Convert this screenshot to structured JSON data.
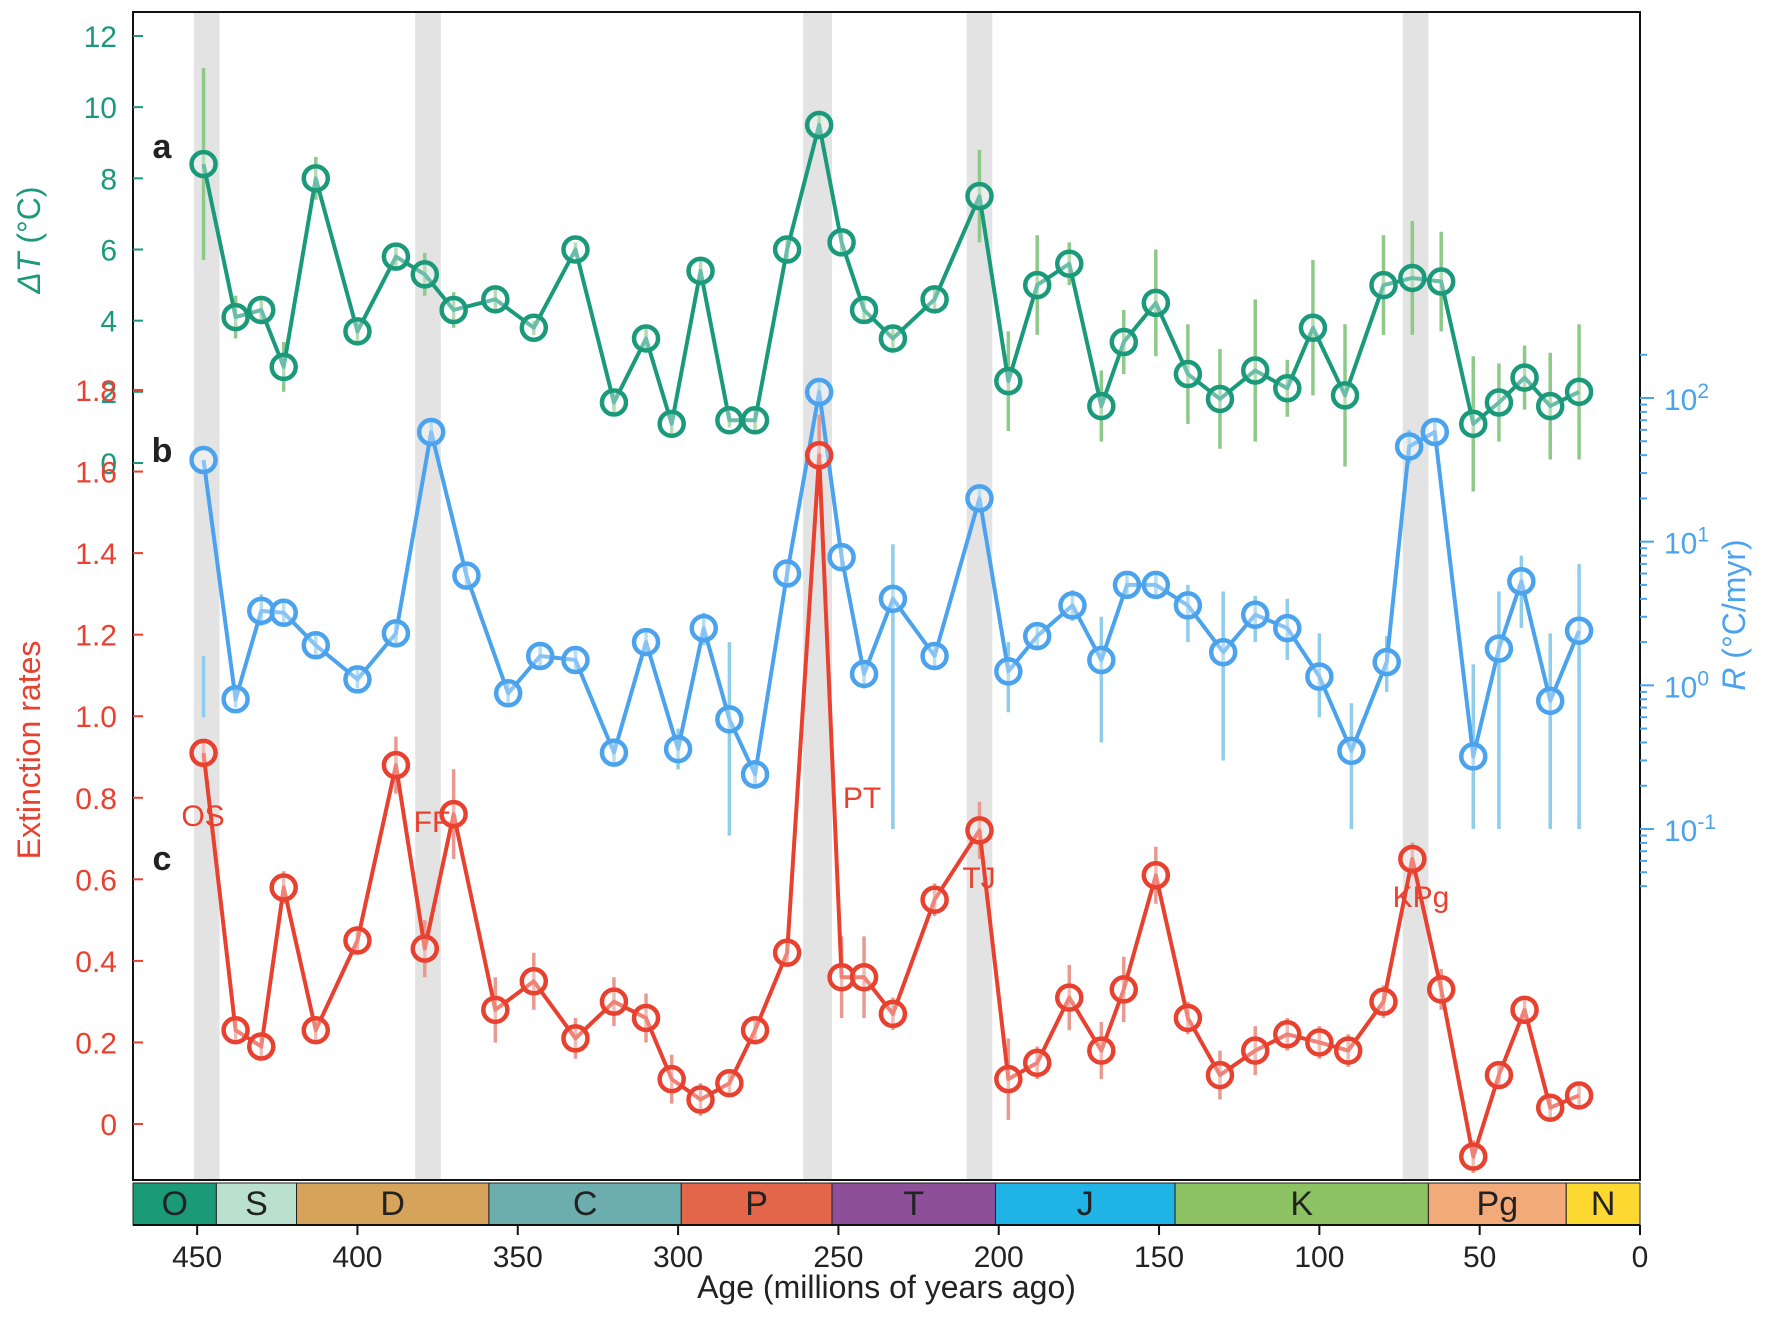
{
  "chart_data": {
    "type": "line",
    "x_axis": {
      "label": "Age (millions of years ago)",
      "range": [
        470,
        0
      ],
      "reversed": true,
      "ticks": [
        450,
        400,
        350,
        300,
        250,
        200,
        150,
        100,
        50,
        0
      ]
    },
    "extinction_events": [
      {
        "label": "OS",
        "start": 451,
        "end": 443
      },
      {
        "label": "FF",
        "start": 382,
        "end": 374
      },
      {
        "label": "PT",
        "start": 261,
        "end": 252
      },
      {
        "label": "TJ",
        "start": 210,
        "end": 202
      },
      {
        "label": "KPg",
        "start": 74,
        "end": 66
      }
    ],
    "periods": [
      {
        "label": "O",
        "start": 470,
        "end": 444,
        "color": "#1a9a77"
      },
      {
        "label": "S",
        "start": 444,
        "end": 419,
        "color": "#b9e1cd"
      },
      {
        "label": "D",
        "start": 419,
        "end": 359,
        "color": "#d6a35a"
      },
      {
        "label": "C",
        "start": 359,
        "end": 299,
        "color": "#6cadad"
      },
      {
        "label": "P",
        "start": 299,
        "end": 252,
        "color": "#e3654a"
      },
      {
        "label": "T",
        "start": 252,
        "end": 201,
        "color": "#8c4f98"
      },
      {
        "label": "J",
        "start": 201,
        "end": 145,
        "color": "#1fb3e6"
      },
      {
        "label": "K",
        "start": 145,
        "end": 66,
        "color": "#8cc262"
      },
      {
        "label": "Pg",
        "start": 66,
        "end": 23,
        "color": "#f2aa78"
      },
      {
        "label": "N",
        "start": 23,
        "end": 0,
        "color": "#fcd830"
      }
    ],
    "panels": [
      {
        "id": "a",
        "panel_label": "a",
        "ylabel_symbol": "ΔT",
        "ylabel_unit": " (°C)",
        "axis_side": "left",
        "scale": "linear",
        "ylim": [
          0,
          12
        ],
        "ticks": [
          "0",
          "2",
          "4",
          "6",
          "8",
          "10",
          "12"
        ],
        "color": "#1b9a7b",
        "err_color": "#8fc98a",
        "x": [
          448,
          438,
          430,
          423,
          413,
          400,
          388,
          379,
          370,
          357,
          345,
          332,
          320,
          310,
          302,
          293,
          284,
          276,
          266,
          256,
          249,
          242,
          233,
          220,
          206,
          197,
          188,
          178,
          168,
          161,
          151,
          141,
          131,
          120,
          110,
          102,
          92,
          80,
          71,
          62,
          52,
          44,
          36,
          28,
          19
        ],
        "values": [
          8.4,
          4.1,
          4.3,
          2.7,
          8.0,
          3.7,
          5.8,
          5.3,
          4.3,
          4.6,
          3.8,
          6.0,
          1.7,
          3.5,
          1.1,
          5.4,
          1.2,
          1.2,
          6.0,
          9.5,
          6.2,
          4.3,
          3.5,
          4.6,
          7.5,
          2.3,
          5.0,
          5.6,
          1.6,
          3.4,
          4.5,
          2.5,
          1.8,
          2.6,
          2.1,
          3.8,
          1.9,
          5.0,
          5.2,
          5.1,
          1.1,
          1.7,
          2.4,
          1.6,
          2.0
        ],
        "err": [
          2.7,
          0.6,
          0.4,
          0.7,
          0.6,
          0.3,
          0.3,
          0.6,
          0.5,
          0.3,
          0.2,
          0.2,
          0.3,
          0.3,
          0.3,
          0.4,
          0.2,
          0.3,
          0.3,
          0.4,
          0.3,
          0.3,
          0.3,
          0.4,
          1.3,
          1.4,
          1.4,
          0.6,
          1.0,
          0.9,
          1.5,
          1.4,
          1.4,
          2.0,
          0.8,
          1.9,
          2.0,
          1.4,
          1.6,
          1.4,
          1.9,
          1.1,
          0.9,
          1.5,
          1.9
        ]
      },
      {
        "id": "b",
        "panel_label": "b",
        "ylabel_symbol": "R",
        "ylabel_unit": " (°C/myr)",
        "axis_side": "right",
        "scale": "log",
        "ylim": [
          0.0302,
          302
        ],
        "ticks": [
          {
            "value": 0.1,
            "base": "10",
            "exp": "-1"
          },
          {
            "value": 1,
            "base": "10",
            "exp": "0"
          },
          {
            "value": 10,
            "base": "10",
            "exp": "1"
          },
          {
            "value": 100,
            "base": "10",
            "exp": "2"
          }
        ],
        "color": "#4ba3ee",
        "err_color": "#8fcdea",
        "x": [
          448,
          438,
          430,
          423,
          413,
          400,
          388,
          377,
          366,
          353,
          343,
          332,
          320,
          310,
          300,
          292,
          284,
          276,
          266,
          256,
          249,
          242,
          233,
          220,
          206,
          197,
          188,
          177,
          168,
          160,
          151,
          141,
          130,
          120,
          110,
          100,
          90,
          79,
          72,
          64,
          52,
          44,
          37,
          28,
          19
        ],
        "values": [
          37,
          0.8,
          3.3,
          3.2,
          1.9,
          1.1,
          2.3,
          58,
          5.8,
          0.88,
          1.6,
          1.5,
          0.34,
          2.0,
          0.36,
          2.5,
          0.58,
          0.24,
          6.0,
          110,
          7.8,
          1.2,
          4.0,
          1.6,
          20,
          1.25,
          2.2,
          3.6,
          1.5,
          5.0,
          5.0,
          3.6,
          1.7,
          3.1,
          2.5,
          1.15,
          0.35,
          1.45,
          46,
          58,
          0.32,
          1.8,
          5.3,
          0.78,
          2.4
        ],
        "err": [
          [
            0.6,
            1.6
          ],
          [
            0.7,
            1.0
          ],
          [
            2.6,
            4.3
          ],
          [
            2.6,
            4.0
          ],
          [
            1.6,
            2.3
          ],
          [
            0.95,
            1.3
          ],
          [
            1.9,
            2.8
          ],
          [
            50,
            68
          ],
          [
            4.8,
            7.0
          ],
          [
            0.75,
            1.05
          ],
          [
            1.35,
            1.9
          ],
          [
            1.25,
            1.8
          ],
          [
            0.28,
            0.42
          ],
          [
            1.6,
            2.5
          ],
          [
            0.26,
            0.5
          ],
          [
            1.9,
            3.2
          ],
          [
            0.09,
            2.0
          ],
          [
            0.19,
            0.3
          ],
          [
            5.0,
            7.2
          ],
          [
            95,
            128
          ],
          [
            6.5,
            9.4
          ],
          [
            0.95,
            1.5
          ],
          [
            0.1,
            9.6
          ],
          [
            1.35,
            1.9
          ],
          [
            17,
            24
          ],
          [
            0.65,
            2.0
          ],
          [
            1.8,
            2.7
          ],
          [
            2.8,
            4.6
          ],
          [
            0.4,
            3.0
          ],
          [
            4.0,
            6.2
          ],
          [
            4.2,
            6.0
          ],
          [
            2.0,
            5.0
          ],
          [
            0.3,
            4.5
          ],
          [
            2.0,
            4.2
          ],
          [
            1.5,
            4.0
          ],
          [
            0.6,
            2.3
          ],
          [
            0.1,
            0.75
          ],
          [
            0.9,
            2.2
          ],
          [
            35,
            60
          ],
          [
            48,
            70
          ],
          [
            0.1,
            1.4
          ],
          [
            0.1,
            4.5
          ],
          [
            2.5,
            8.0
          ],
          [
            0.1,
            2.3
          ],
          [
            0.1,
            7.0
          ]
        ]
      },
      {
        "id": "c",
        "panel_label": "c",
        "ylabel": "Extinction rates",
        "axis_side": "left",
        "scale": "linear",
        "ylim": [
          -0.1,
          1.9
        ],
        "ticks": [
          "0",
          "0.2",
          "0.4",
          "0.6",
          "0.8",
          "1.0",
          "1.2",
          "1.4",
          "1.6",
          "1.8"
        ],
        "color": "#e8412f",
        "err_color": "#e99a90",
        "x": [
          448,
          438,
          430,
          423,
          413,
          400,
          388,
          379,
          370,
          357,
          345,
          332,
          320,
          310,
          302,
          293,
          284,
          276,
          266,
          256,
          249,
          242,
          233,
          220,
          206,
          197,
          188,
          178,
          168,
          161,
          151,
          141,
          131,
          120,
          110,
          100,
          91,
          80,
          71,
          62,
          52,
          44,
          36,
          28,
          19
        ],
        "values": [
          0.91,
          0.23,
          0.19,
          0.58,
          0.23,
          0.45,
          0.88,
          0.43,
          0.76,
          0.28,
          0.35,
          0.21,
          0.3,
          0.26,
          0.11,
          0.06,
          0.1,
          0.23,
          0.42,
          1.64,
          0.36,
          0.36,
          0.27,
          0.55,
          0.72,
          0.11,
          0.15,
          0.31,
          0.18,
          0.33,
          0.61,
          0.26,
          0.12,
          0.18,
          0.22,
          0.2,
          0.18,
          0.3,
          0.65,
          0.33,
          -0.08,
          0.12,
          0.28,
          0.04,
          0.07
        ],
        "err": [
          0.03,
          0.03,
          0.03,
          0.04,
          0.03,
          0.03,
          0.07,
          0.07,
          0.11,
          0.08,
          0.07,
          0.05,
          0.06,
          0.06,
          0.06,
          0.04,
          0.03,
          0.03,
          0.03,
          0.1,
          0.1,
          0.1,
          0.04,
          0.04,
          0.07,
          0.1,
          0.04,
          0.08,
          0.07,
          0.08,
          0.07,
          0.04,
          0.06,
          0.06,
          0.04,
          0.04,
          0.04,
          0.04,
          0.04,
          0.05,
          0.04,
          0.03,
          0.03,
          0.03,
          0.03
        ]
      }
    ]
  }
}
